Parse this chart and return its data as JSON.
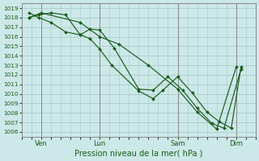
{
  "xlabel": "Pression niveau de la mer( hPa )",
  "bg_color": "#cce8e8",
  "grid_color": "#aacccc",
  "line_color": "#1a5c1a",
  "spine_color": "#888888",
  "ylim": [
    1005.5,
    1019.5
  ],
  "xlim": [
    0,
    96
  ],
  "yticks": [
    1006,
    1007,
    1008,
    1009,
    1010,
    1011,
    1012,
    1013,
    1014,
    1015,
    1016,
    1017,
    1018,
    1019
  ],
  "xtick_labels": [
    "Ven",
    "Lun",
    "Sam",
    "Dim"
  ],
  "xtick_positions": [
    8,
    32,
    64,
    88
  ],
  "vlines": [
    8,
    32,
    64,
    88
  ],
  "series1": {
    "x": [
      3,
      8,
      24,
      32,
      40,
      52,
      64,
      72,
      80,
      88
    ],
    "y": [
      1018.0,
      1018.5,
      1017.5,
      1016.0,
      1015.2,
      1013.0,
      1010.5,
      1008.1,
      1006.3,
      1012.8
    ]
  },
  "series2": {
    "x": [
      3,
      7,
      12,
      18,
      24,
      28,
      32,
      38,
      48,
      54,
      60,
      66,
      72,
      78,
      83,
      90
    ],
    "y": [
      1018.5,
      1018.0,
      1017.5,
      1016.5,
      1016.2,
      1016.8,
      1016.7,
      1014.8,
      1010.5,
      1010.4,
      1011.8,
      1010.4,
      1008.5,
      1006.9,
      1006.4,
      1012.6
    ]
  },
  "series3": {
    "x": [
      3,
      7,
      12,
      18,
      24,
      28,
      32,
      37,
      48,
      54,
      58,
      64,
      70,
      76,
      81,
      86,
      90
    ],
    "y": [
      1018.0,
      1018.3,
      1018.5,
      1018.3,
      1016.2,
      1015.8,
      1014.7,
      1013.0,
      1010.3,
      1009.5,
      1010.4,
      1011.8,
      1010.1,
      1008.1,
      1007.1,
      1006.4,
      1012.8
    ]
  },
  "marker": "D",
  "markersize": 2.0,
  "linewidth": 0.85,
  "xlabel_fontsize": 7,
  "ytick_fontsize": 5.2,
  "xtick_fontsize": 6.0
}
